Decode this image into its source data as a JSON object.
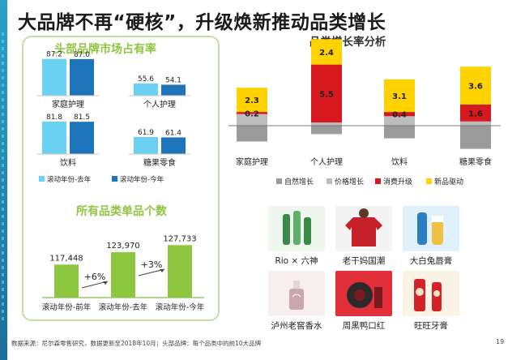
{
  "page_title": "大品牌不再“硬核”，升级焕新推动品类增长",
  "colors": {
    "light_blue": "#6bd1f2",
    "dark_blue": "#1e74b8",
    "green": "#8dc63f",
    "gray": "#9b9b9b",
    "red": "#d7191f",
    "yellow": "#ffd200",
    "panel_border": "#c6dfa6"
  },
  "share_section_title": "头部品牌市场占有率",
  "count_section_title": "所有品类单品个数",
  "growth_section_title": "品类增长率分析",
  "brands_note": "",
  "footnote": "数据来源：尼尔森零售研究，数据更新至2018年10月；头部品牌：每个品类中的前10大品牌",
  "page_number": "19",
  "chart_data": [
    {
      "type": "bar",
      "title": "头部品牌市场占有率",
      "panels": [
        {
          "category": "家庭护理",
          "values": [
            87.2,
            87.0
          ]
        },
        {
          "category": "个人护理",
          "values": [
            55.6,
            54.1
          ]
        },
        {
          "category": "饮料",
          "values": [
            81.8,
            81.5
          ]
        },
        {
          "category": "糖果零食",
          "values": [
            61.9,
            61.4
          ]
        }
      ],
      "series": [
        {
          "name": "滚动年份-去年",
          "color": "#6bd1f2"
        },
        {
          "name": "滚动年份-今年",
          "color": "#1e74b8"
        }
      ],
      "ylim": [
        40,
        90
      ],
      "legend": "bottom"
    },
    {
      "type": "bar",
      "title": "所有品类单品个数",
      "categories": [
        "滚动年份-前年",
        "滚动年份-去年",
        "滚动年份-今年"
      ],
      "values": [
        117448,
        123970,
        127733
      ],
      "value_labels": [
        "117,448",
        "123,970",
        "127,733"
      ],
      "annotations": [
        "+6%",
        "+3%"
      ],
      "ylim": [
        100000,
        130000
      ],
      "color": "#8dc63f"
    },
    {
      "type": "bar",
      "stacked": true,
      "title": "品类增长率分析",
      "categories": [
        "家庭护理",
        "个人护理",
        "饮料",
        "糖果零食"
      ],
      "series": [
        {
          "name": "自然增长",
          "color": "#9b9b9b",
          "values": [
            -1.5,
            -0.8,
            -1.2,
            -2.2
          ]
        },
        {
          "name": "价格增长",
          "color": "#bdbdbd",
          "values": [
            1.1,
            0.3,
            0.9,
            0.4
          ]
        },
        {
          "name": "消费升级",
          "color": "#d7191f",
          "values": [
            0.2,
            5.5,
            0.4,
            1.6
          ]
        },
        {
          "name": "新品驱动",
          "color": "#ffd200",
          "values": [
            2.3,
            2.4,
            3.1,
            3.6
          ]
        }
      ],
      "value_labels": [
        {
          "category": "家庭护理",
          "series": "新品驱动",
          "text": "2.3"
        },
        {
          "category": "家庭护理",
          "series": "消费升级",
          "text": "0.2"
        },
        {
          "category": "个人护理",
          "series": "新品驱动",
          "text": "2.4"
        },
        {
          "category": "个人护理",
          "series": "消费升级",
          "text": "5.5"
        },
        {
          "category": "饮料",
          "series": "新品驱动",
          "text": "3.1"
        },
        {
          "category": "饮料",
          "series": "消费升级",
          "text": "0.4"
        },
        {
          "category": "糖果零食",
          "series": "新品驱动",
          "text": "3.6"
        },
        {
          "category": "糖果零食",
          "series": "消费升级",
          "text": "1.6"
        }
      ],
      "legend": "bottom"
    }
  ],
  "brands": [
    {
      "name": "Rio × 六神",
      "icon": "bottle-icon",
      "bg": "#eef6ee",
      "fg": "#3a8a4a"
    },
    {
      "name": "老干妈国潮",
      "icon": "sweater-icon",
      "bg": "#f4f4f4",
      "fg": "#c8202a"
    },
    {
      "name": "大白兔唇膏",
      "icon": "lip-balm-icon",
      "bg": "#dff1fb",
      "fg": "#2a7fc1"
    },
    {
      "name": "泸州老窖香水",
      "icon": "perfume-icon",
      "bg": "#f7eeee",
      "fg": "#c9a6b0"
    },
    {
      "name": "周黑鸭口红",
      "icon": "lipstick-icon",
      "bg": "#e2303a",
      "fg": "#2a2a2a"
    },
    {
      "name": "旺旺牙膏",
      "icon": "toothpaste-icon",
      "bg": "#fbf3e6",
      "fg": "#d2232a"
    }
  ]
}
